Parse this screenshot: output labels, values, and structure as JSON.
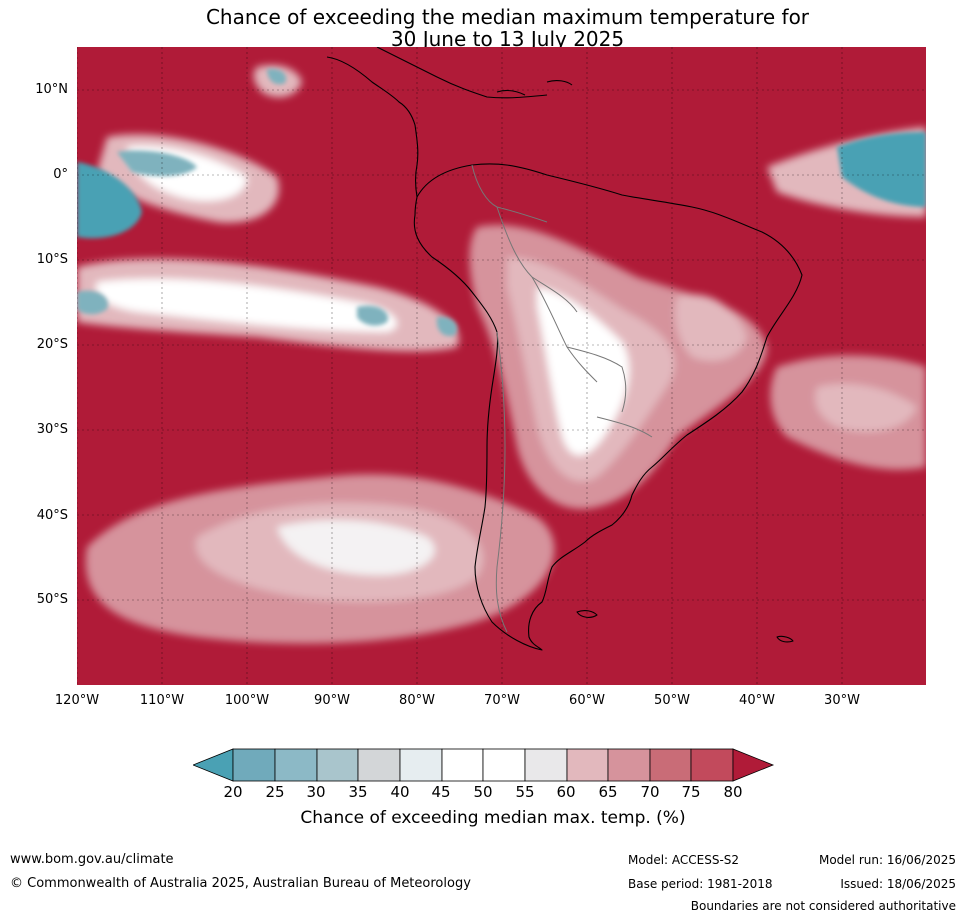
{
  "title": {
    "line1": "Chance of exceeding the median maximum temperature for",
    "line2": "30 June to 13 July 2025"
  },
  "map": {
    "lat_labels": [
      "10°N",
      "0°",
      "10°S",
      "20°S",
      "30°S",
      "40°S",
      "50°S"
    ],
    "lon_labels": [
      "120°W",
      "110°W",
      "100°W",
      "90°W",
      "80°W",
      "70°W",
      "60°W",
      "50°W",
      "40°W",
      "30°W"
    ],
    "colors": {
      "very_high": "#b01b38",
      "high": "#c24a5c",
      "medium_high": "#c96c77",
      "medium": "#d6939c",
      "low_medium": "#e2b8bd",
      "neutral": "#ffffff",
      "low": "#7fb2be",
      "very_low": "#4aa1b4"
    }
  },
  "colorbar": {
    "ticks": [
      "20",
      "25",
      "30",
      "35",
      "40",
      "45",
      "50",
      "55",
      "60",
      "65",
      "70",
      "75",
      "80"
    ],
    "label": "Chance of exceeding median max. temp. (%)",
    "colors": [
      "#4aa1b4",
      "#70aabb",
      "#8cb9c6",
      "#a9c5cc",
      "#d3d6d8",
      "#e6edf0",
      "#ffffff",
      "#ffffff",
      "#e9e8ea",
      "#e2b8bd",
      "#d6939c",
      "#c96c77",
      "#c24a5c",
      "#b01b38"
    ]
  },
  "footer": {
    "url": "www.bom.gov.au/climate",
    "copyright": "© Commonwealth of Australia 2025, Australian Bureau of Meteorology",
    "model": "Model: ACCESS-S2",
    "base_period": "Base period: 1981-2018",
    "model_run": "Model run: 16/06/2025",
    "issued": "Issued: 18/06/2025",
    "disclaimer": "Boundaries are not considered authoritative"
  }
}
